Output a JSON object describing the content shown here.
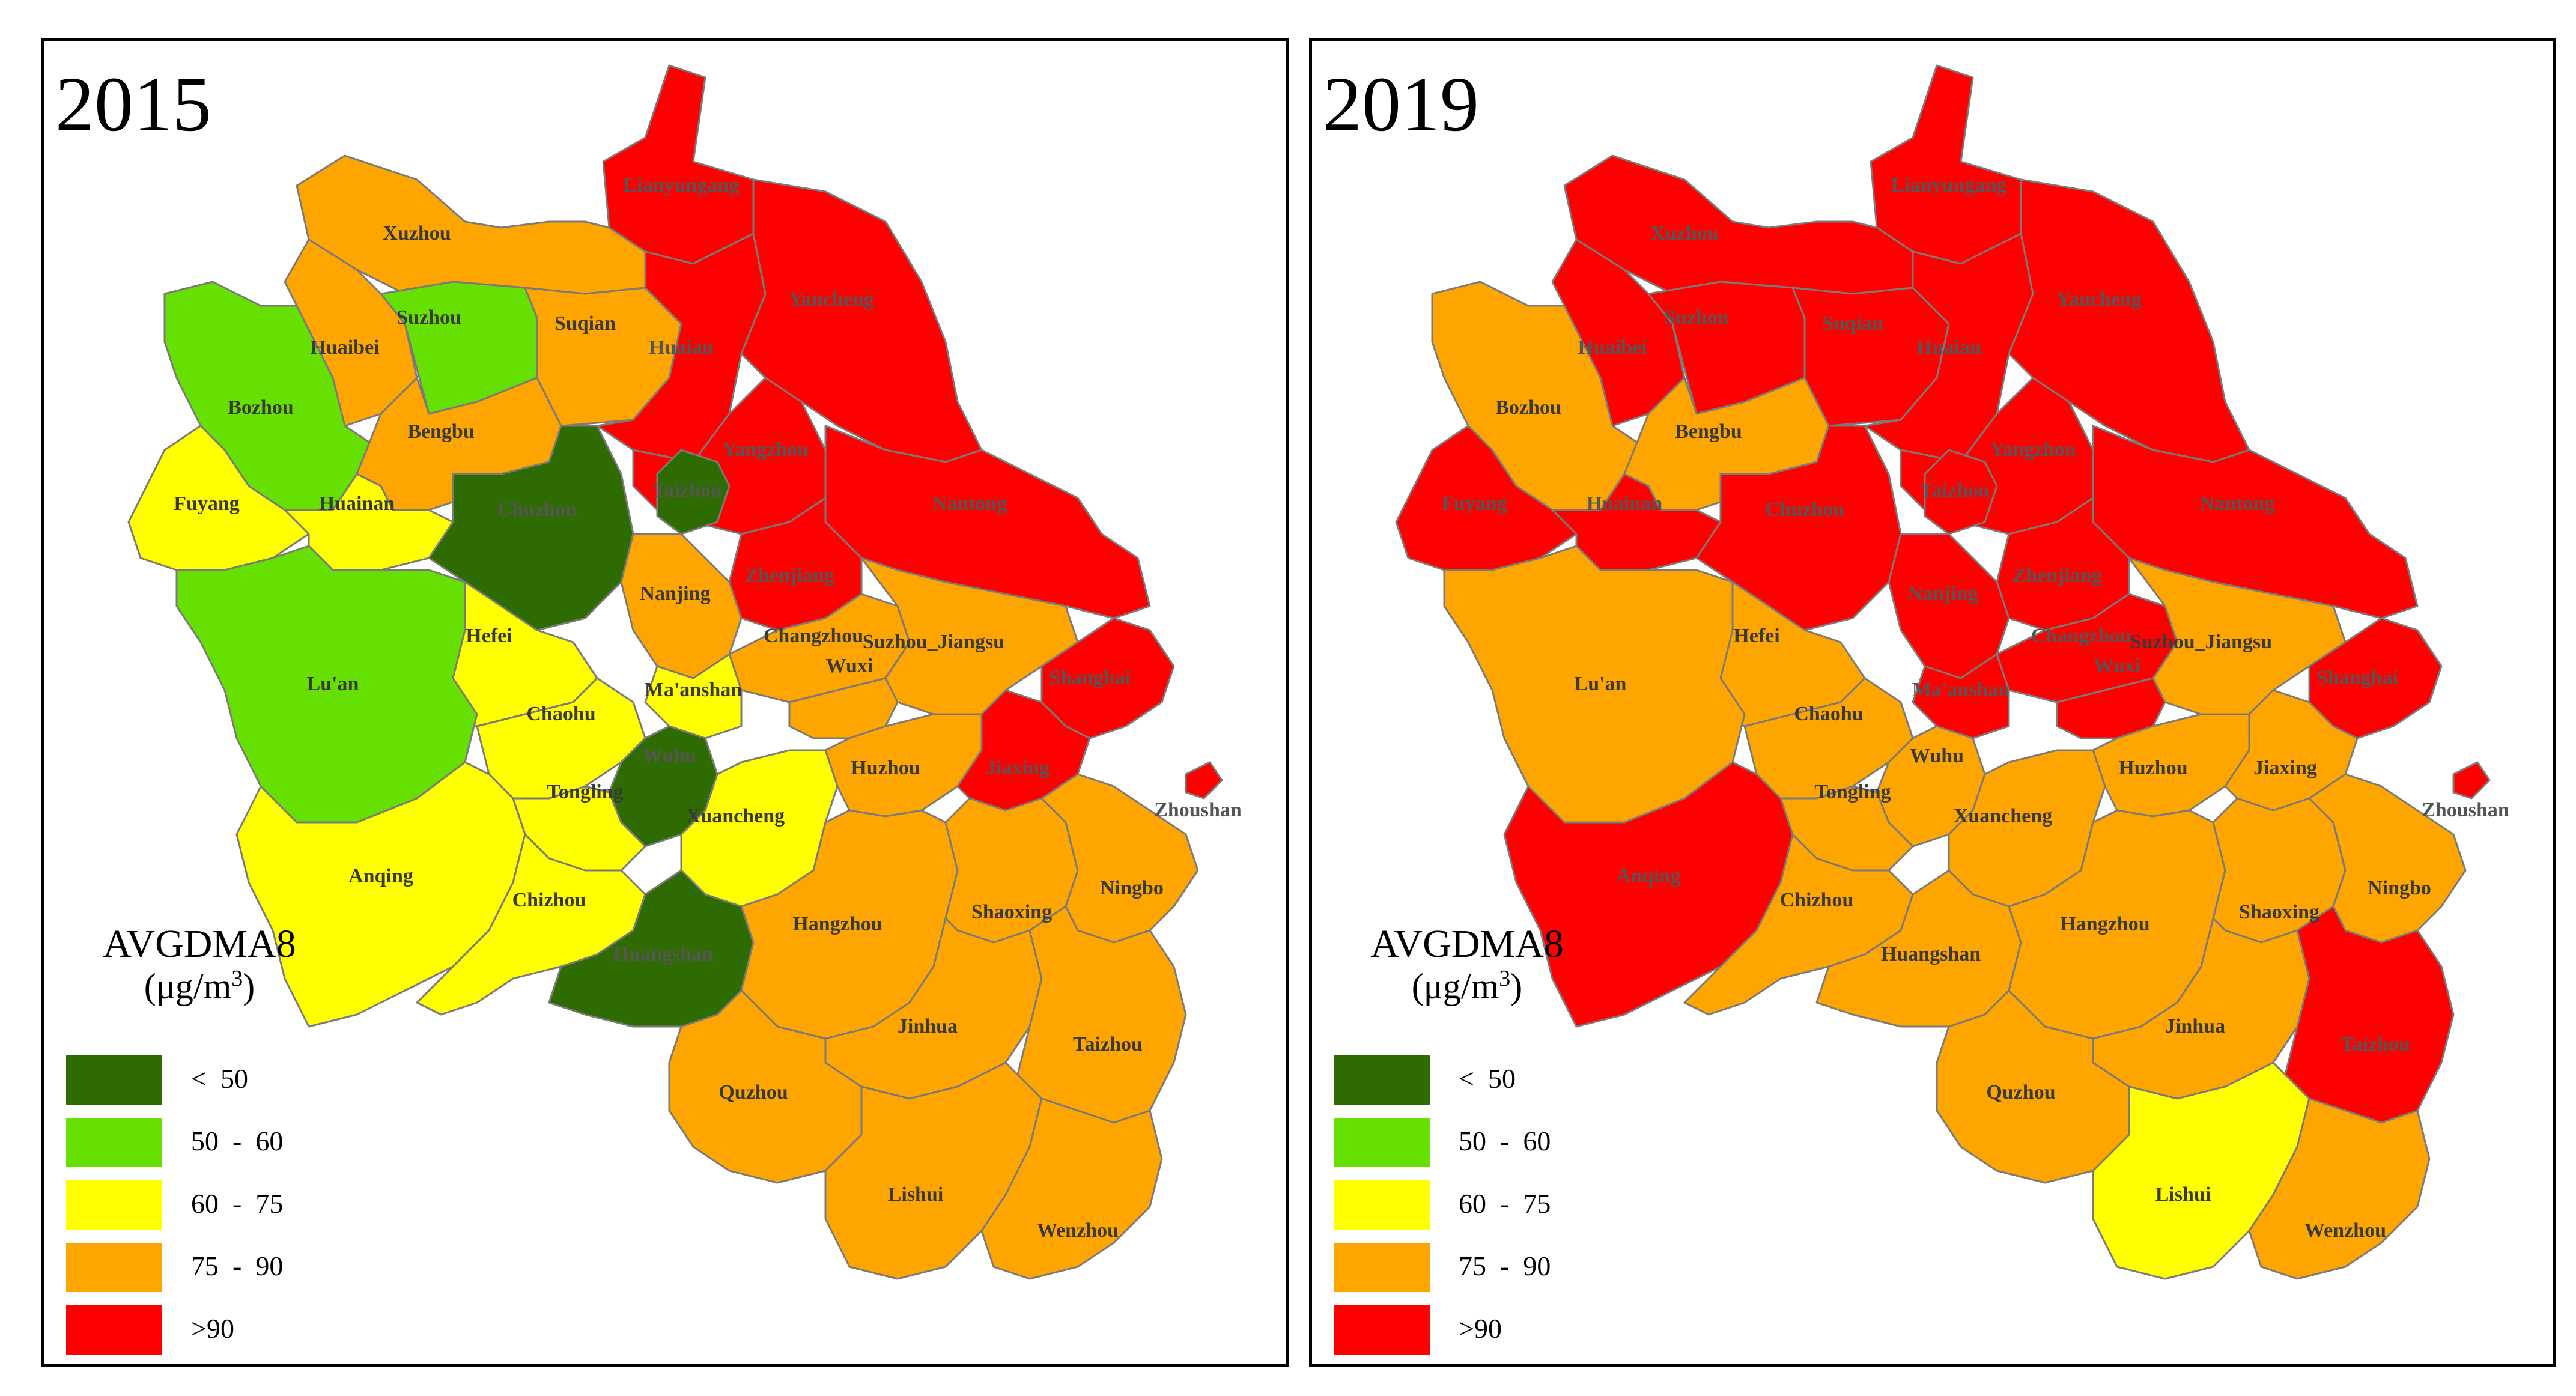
{
  "colors": {
    "lt50": "#2e6b00",
    "50-60": "#66e000",
    "60-75": "#ffff00",
    "75-90": "#ffa500",
    "gt90": "#ff0000"
  },
  "legend": {
    "title": "AVGDMA8",
    "unit_base": "(μg/m",
    "unit_exp": "3",
    "unit_close": ")",
    "classes": [
      {
        "key": "lt50",
        "label": "<  50"
      },
      {
        "key": "50-60",
        "label": "50  -  60"
      },
      {
        "key": "60-75",
        "label": "60  -  75"
      },
      {
        "key": "75-90",
        "label": "75  -  90"
      },
      {
        "key": "gt90",
        "label": ">90"
      }
    ]
  },
  "cities": [
    "Lianyungang",
    "Xuzhou",
    "Suzhou",
    "Suqian",
    "Huaibei",
    "Huaian",
    "Yancheng",
    "Bozhou",
    "Bengbu",
    "Yangzhou",
    "Taizhou_JS",
    "Fuyang",
    "Huainan",
    "Chuzhou",
    "Nantong",
    "Nanjing",
    "Zhenjiang",
    "Changzhou",
    "Hefei",
    "Lu'an",
    "Ma'anshan",
    "Suzhou_Jiangsu",
    "Wuxi",
    "Shanghai",
    "Chaohu",
    "Wuhu",
    "Tongling",
    "Huzhou",
    "Jiaxing",
    "Xuancheng",
    "Zhoushan",
    "Anqing",
    "Chizhou",
    "Huangshan",
    "Hangzhou",
    "Shaoxing",
    "Ningbo",
    "Jinhua",
    "Taizhou",
    "Quzhou",
    "Lishui",
    "Wenzhou"
  ],
  "labels": {
    "Lianyungang": "Lianyungang",
    "Xuzhou": "Xuzhou",
    "Suzhou": "Suzhou",
    "Suqian": "Suqian",
    "Huaibei": "Huaibei",
    "Huaian": "Huaian",
    "Yancheng": "Yancheng",
    "Bozhou": "Bozhou",
    "Bengbu": "Bengbu",
    "Yangzhou": "Yangzhou",
    "Taizhou_JS": "Taizhou",
    "Fuyang": "Fuyang",
    "Huainan": "Huainan",
    "Chuzhou": "Chuzhou",
    "Nantong": "Nantong",
    "Nanjing": "Nanjing",
    "Zhenjiang": "Zhenjiang",
    "Changzhou": "Changzhou",
    "Hefei": "Hefei",
    "Lu'an": "Lu'an",
    "Ma'anshan": "Ma'anshan",
    "Suzhou_Jiangsu": "Suzhou_Jiangsu",
    "Wuxi": "Wuxi",
    "Shanghai": "Shanghai",
    "Chaohu": "Chaohu",
    "Wuhu": "Wuhu",
    "Tongling": "Tongling",
    "Huzhou": "Huzhou",
    "Jiaxing": "Jiaxing",
    "Xuancheng": "Xuancheng",
    "Zhoushan": "Zhoushan",
    "Anqing": "Anqing",
    "Chizhou": "Chizhou",
    "Huangshan": "Huangshan",
    "Hangzhou": "Hangzhou",
    "Shaoxing": "Shaoxing",
    "Ningbo": "Ningbo",
    "Jinhua": "Jinhua",
    "Taizhou": "Taizhou",
    "Quzhou": "Quzhou",
    "Lishui": "Lishui",
    "Wenzhou": "Wenzhou"
  },
  "maps": [
    {
      "year": "2015",
      "classes": {
        "Lianyungang": "gt90",
        "Xuzhou": "75-90",
        "Suzhou": "50-60",
        "Suqian": "75-90",
        "Huaibei": "75-90",
        "Huaian": "gt90",
        "Yancheng": "gt90",
        "Bozhou": "50-60",
        "Bengbu": "75-90",
        "Yangzhou": "gt90",
        "Taizhou_JS": "lt50",
        "Fuyang": "60-75",
        "Huainan": "60-75",
        "Chuzhou": "lt50",
        "Nantong": "gt90",
        "Nanjing": "75-90",
        "Zhenjiang": "gt90",
        "Changzhou": "75-90",
        "Hefei": "60-75",
        "Lu'an": "50-60",
        "Ma'anshan": "60-75",
        "Suzhou_Jiangsu": "75-90",
        "Wuxi": "75-90",
        "Shanghai": "gt90",
        "Chaohu": "60-75",
        "Wuhu": "lt50",
        "Tongling": "60-75",
        "Huzhou": "75-90",
        "Jiaxing": "gt90",
        "Xuancheng": "60-75",
        "Zhoushan": "gt90",
        "Anqing": "60-75",
        "Chizhou": "60-75",
        "Huangshan": "lt50",
        "Hangzhou": "75-90",
        "Shaoxing": "75-90",
        "Ningbo": "75-90",
        "Jinhua": "75-90",
        "Taizhou": "75-90",
        "Quzhou": "75-90",
        "Lishui": "75-90",
        "Wenzhou": "75-90"
      }
    },
    {
      "year": "2019",
      "classes": {
        "Lianyungang": "gt90",
        "Xuzhou": "gt90",
        "Suzhou": "gt90",
        "Suqian": "gt90",
        "Huaibei": "gt90",
        "Huaian": "gt90",
        "Yancheng": "gt90",
        "Bozhou": "75-90",
        "Bengbu": "75-90",
        "Yangzhou": "gt90",
        "Taizhou_JS": "gt90",
        "Fuyang": "gt90",
        "Huainan": "gt90",
        "Chuzhou": "gt90",
        "Nantong": "gt90",
        "Nanjing": "gt90",
        "Zhenjiang": "gt90",
        "Changzhou": "gt90",
        "Hefei": "75-90",
        "Lu'an": "75-90",
        "Ma'anshan": "gt90",
        "Suzhou_Jiangsu": "75-90",
        "Wuxi": "gt90",
        "Shanghai": "gt90",
        "Chaohu": "75-90",
        "Wuhu": "75-90",
        "Tongling": "75-90",
        "Huzhou": "75-90",
        "Jiaxing": "75-90",
        "Xuancheng": "75-90",
        "Zhoushan": "gt90",
        "Anqing": "gt90",
        "Chizhou": "75-90",
        "Huangshan": "75-90",
        "Hangzhou": "75-90",
        "Shaoxing": "75-90",
        "Ningbo": "75-90",
        "Jinhua": "75-90",
        "Taizhou": "gt90",
        "Quzhou": "75-90",
        "Lishui": "60-75",
        "Wenzhou": "75-90"
      }
    }
  ]
}
